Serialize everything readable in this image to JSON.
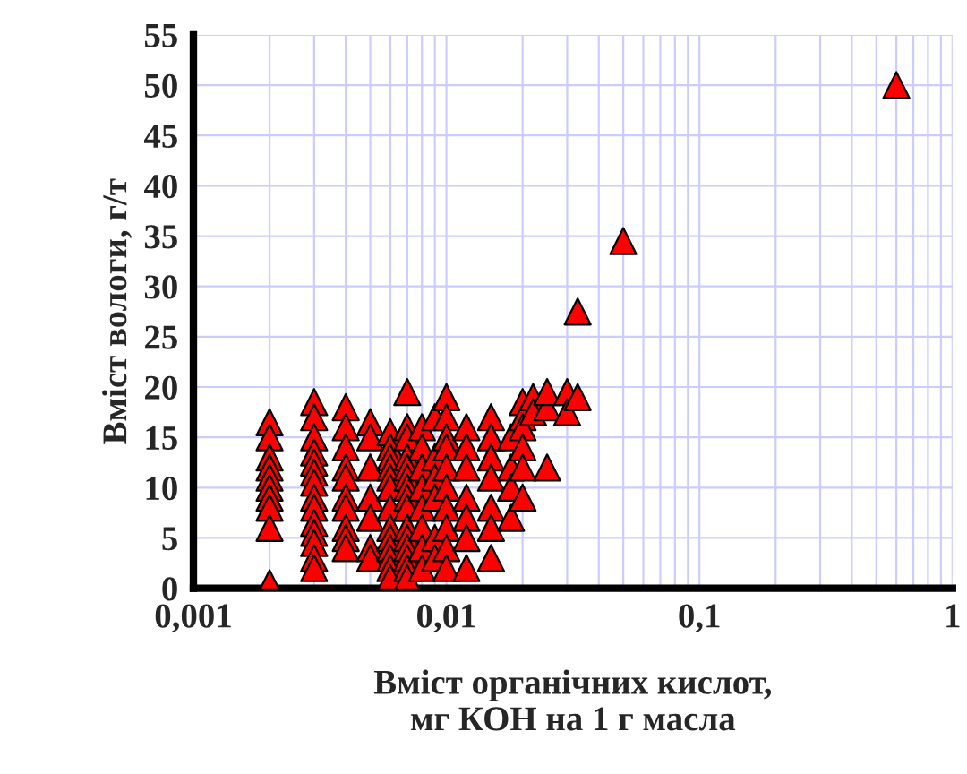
{
  "chart_data": {
    "type": "scatter",
    "xlabel": "Вміст органічних кислот,\nмг КОН на 1 г масла",
    "ylabel": "Вміст вологи, г/т",
    "log": "x",
    "grid": true,
    "marker": "triangle",
    "xlim": [
      0.001,
      1
    ],
    "ylim": [
      0,
      55
    ],
    "xticks": [
      {
        "value": 0.001,
        "label": "0,001"
      },
      {
        "value": 0.002,
        "label": null
      },
      {
        "value": 0.003,
        "label": null
      },
      {
        "value": 0.004,
        "label": null
      },
      {
        "value": 0.005,
        "label": null
      },
      {
        "value": 0.006,
        "label": null
      },
      {
        "value": 0.007,
        "label": null
      },
      {
        "value": 0.008,
        "label": null
      },
      {
        "value": 0.009,
        "label": null
      },
      {
        "value": 0.01,
        "label": "0,01"
      },
      {
        "value": 0.02,
        "label": null
      },
      {
        "value": 0.03,
        "label": null
      },
      {
        "value": 0.04,
        "label": null
      },
      {
        "value": 0.05,
        "label": null
      },
      {
        "value": 0.06,
        "label": null
      },
      {
        "value": 0.07,
        "label": null
      },
      {
        "value": 0.08,
        "label": null
      },
      {
        "value": 0.09,
        "label": null
      },
      {
        "value": 0.1,
        "label": "0,1"
      },
      {
        "value": 0.2,
        "label": null
      },
      {
        "value": 0.3,
        "label": null
      },
      {
        "value": 0.4,
        "label": null
      },
      {
        "value": 0.5,
        "label": null
      },
      {
        "value": 0.6,
        "label": null
      },
      {
        "value": 0.7,
        "label": null
      },
      {
        "value": 0.8,
        "label": null
      },
      {
        "value": 0.9,
        "label": null
      },
      {
        "value": 1,
        "label": "1"
      }
    ],
    "yticks": [
      0,
      5,
      10,
      15,
      20,
      25,
      30,
      35,
      40,
      45,
      50,
      55
    ],
    "series": [
      {
        "color": "#ff0000",
        "x": [
          0.002,
          0.002,
          0.002,
          0.002,
          0.002,
          0.002,
          0.002,
          0.002,
          0.002,
          0.002,
          0.003,
          0.003,
          0.003,
          0.003,
          0.003,
          0.003,
          0.003,
          0.003,
          0.003,
          0.003,
          0.003,
          0.003,
          0.003,
          0.003,
          0.004,
          0.004,
          0.004,
          0.004,
          0.004,
          0.004,
          0.004,
          0.004,
          0.004,
          0.004,
          0.005,
          0.005,
          0.005,
          0.005,
          0.005,
          0.005,
          0.005,
          0.006,
          0.006,
          0.006,
          0.006,
          0.006,
          0.006,
          0.006,
          0.006,
          0.006,
          0.006,
          0.006,
          0.006,
          0.006,
          0.007,
          0.007,
          0.007,
          0.007,
          0.007,
          0.007,
          0.007,
          0.007,
          0.007,
          0.007,
          0.007,
          0.007,
          0.007,
          0.007,
          0.007,
          0.008,
          0.008,
          0.008,
          0.008,
          0.008,
          0.008,
          0.008,
          0.008,
          0.009,
          0.009,
          0.009,
          0.009,
          0.009,
          0.009,
          0.01,
          0.01,
          0.01,
          0.01,
          0.01,
          0.01,
          0.01,
          0.01,
          0.01,
          0.01,
          0.012,
          0.012,
          0.012,
          0.012,
          0.012,
          0.012,
          0.012,
          0.015,
          0.015,
          0.015,
          0.015,
          0.015,
          0.015,
          0.015,
          0.018,
          0.018,
          0.018,
          0.018,
          0.02,
          0.02,
          0.02,
          0.02,
          0.02,
          0.02,
          0.022,
          0.022,
          0.025,
          0.025,
          0.025,
          0.03,
          0.03,
          0.033,
          0.033,
          0.05,
          0.6
        ],
        "values": [
          16.5,
          15,
          13,
          12,
          11,
          10,
          9,
          8,
          6,
          0.5,
          18.5,
          17,
          15,
          13.5,
          12.5,
          11.5,
          10.5,
          9,
          8,
          6.5,
          5.5,
          4.5,
          3,
          2,
          18,
          16,
          14,
          12,
          11,
          9,
          8,
          6,
          5,
          4,
          16.5,
          15,
          12,
          9,
          7,
          4,
          3,
          15.5,
          14,
          13,
          12,
          11,
          10,
          8,
          6,
          5,
          4,
          3,
          2,
          1,
          19.5,
          16,
          15,
          13,
          12,
          11,
          10,
          9,
          8,
          6,
          5,
          4,
          3,
          2,
          1,
          16,
          14,
          12,
          10,
          8,
          6,
          4,
          2,
          17,
          13,
          11,
          9,
          5,
          3,
          19,
          17,
          15,
          14,
          12,
          10,
          8,
          6,
          4,
          2,
          16,
          14,
          12,
          9,
          7,
          5,
          2,
          17,
          15,
          13,
          11,
          8,
          6,
          3,
          15,
          12,
          10,
          7,
          18.5,
          17,
          16,
          14,
          12,
          9,
          19,
          17.5,
          18,
          19.5,
          12,
          19.5,
          17.5,
          19,
          27.5,
          34.5,
          50
        ]
      }
    ]
  }
}
